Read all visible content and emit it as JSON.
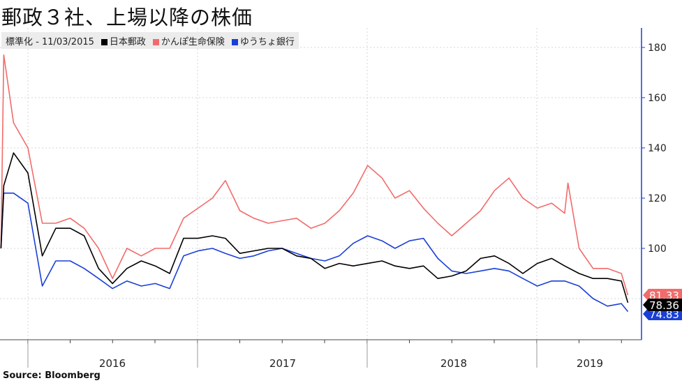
{
  "chart_data": {
    "type": "line",
    "title": "郵政３社、上場以降の株価",
    "legend_prefix": "標準化 - 11/03/2015",
    "legend_position": "top-left",
    "y_axis_side": "right",
    "ylim": [
      67,
      187
    ],
    "yticks": [
      100,
      120,
      140,
      160,
      180
    ],
    "xticks": [
      "2016",
      "2017",
      "2018",
      "2019"
    ],
    "grid": true,
    "source": "Source:  Bloomberg",
    "series": [
      {
        "name": "日本郵政",
        "color": "#000000",
        "last_value": "78.36",
        "points": [
          [
            "2015-11-04",
            100
          ],
          [
            "2015-11-10",
            125
          ],
          [
            "2015-12-01",
            138
          ],
          [
            "2016-01-01",
            130
          ],
          [
            "2016-02-01",
            97
          ],
          [
            "2016-03-01",
            108
          ],
          [
            "2016-04-01",
            108
          ],
          [
            "2016-05-01",
            105
          ],
          [
            "2016-06-01",
            92
          ],
          [
            "2016-07-01",
            86
          ],
          [
            "2016-08-01",
            92
          ],
          [
            "2016-09-01",
            95
          ],
          [
            "2016-10-01",
            93
          ],
          [
            "2016-11-01",
            90
          ],
          [
            "2016-12-01",
            104
          ],
          [
            "2017-01-01",
            104
          ],
          [
            "2017-02-01",
            105
          ],
          [
            "2017-03-01",
            104
          ],
          [
            "2017-04-01",
            98
          ],
          [
            "2017-05-01",
            99
          ],
          [
            "2017-06-01",
            100
          ],
          [
            "2017-07-01",
            100
          ],
          [
            "2017-08-01",
            97
          ],
          [
            "2017-09-01",
            96
          ],
          [
            "2017-10-01",
            92
          ],
          [
            "2017-11-01",
            94
          ],
          [
            "2017-12-01",
            93
          ],
          [
            "2018-01-01",
            94
          ],
          [
            "2018-02-01",
            95
          ],
          [
            "2018-03-01",
            93
          ],
          [
            "2018-04-01",
            92
          ],
          [
            "2018-05-01",
            93
          ],
          [
            "2018-06-01",
            88
          ],
          [
            "2018-07-01",
            89
          ],
          [
            "2018-08-01",
            91
          ],
          [
            "2018-09-01",
            96
          ],
          [
            "2018-10-01",
            97
          ],
          [
            "2018-11-01",
            94
          ],
          [
            "2018-12-01",
            90
          ],
          [
            "2019-01-01",
            94
          ],
          [
            "2019-02-01",
            96
          ],
          [
            "2019-03-01",
            93
          ],
          [
            "2019-04-01",
            90
          ],
          [
            "2019-05-01",
            88
          ],
          [
            "2019-06-01",
            88
          ],
          [
            "2019-07-01",
            87
          ],
          [
            "2019-07-15",
            78.36
          ]
        ]
      },
      {
        "name": "かんぽ生命保険",
        "color": "#f26b6b",
        "last_value": "81.33",
        "points": [
          [
            "2015-11-04",
            100
          ],
          [
            "2015-11-10",
            177
          ],
          [
            "2015-12-01",
            150
          ],
          [
            "2016-01-01",
            140
          ],
          [
            "2016-02-01",
            110
          ],
          [
            "2016-03-01",
            110
          ],
          [
            "2016-04-01",
            112
          ],
          [
            "2016-05-01",
            108
          ],
          [
            "2016-06-01",
            100
          ],
          [
            "2016-07-01",
            88
          ],
          [
            "2016-08-01",
            100
          ],
          [
            "2016-09-01",
            97
          ],
          [
            "2016-10-01",
            100
          ],
          [
            "2016-11-01",
            100
          ],
          [
            "2016-12-01",
            112
          ],
          [
            "2017-01-01",
            116
          ],
          [
            "2017-02-01",
            120
          ],
          [
            "2017-03-01",
            127
          ],
          [
            "2017-04-01",
            115
          ],
          [
            "2017-05-01",
            112
          ],
          [
            "2017-06-01",
            110
          ],
          [
            "2017-07-01",
            111
          ],
          [
            "2017-08-01",
            112
          ],
          [
            "2017-09-01",
            108
          ],
          [
            "2017-10-01",
            110
          ],
          [
            "2017-11-01",
            115
          ],
          [
            "2017-12-01",
            122
          ],
          [
            "2018-01-01",
            133
          ],
          [
            "2018-02-01",
            128
          ],
          [
            "2018-03-01",
            120
          ],
          [
            "2018-04-01",
            123
          ],
          [
            "2018-05-01",
            116
          ],
          [
            "2018-06-01",
            110
          ],
          [
            "2018-07-01",
            105
          ],
          [
            "2018-08-01",
            110
          ],
          [
            "2018-09-01",
            115
          ],
          [
            "2018-10-01",
            123
          ],
          [
            "2018-11-01",
            128
          ],
          [
            "2018-12-01",
            120
          ],
          [
            "2019-01-01",
            116
          ],
          [
            "2019-02-01",
            118
          ],
          [
            "2019-03-01",
            114
          ],
          [
            "2019-03-08",
            126
          ],
          [
            "2019-04-01",
            100
          ],
          [
            "2019-05-01",
            92
          ],
          [
            "2019-06-01",
            92
          ],
          [
            "2019-07-01",
            90
          ],
          [
            "2019-07-15",
            81.33
          ]
        ]
      },
      {
        "name": "ゆうちょ銀行",
        "color": "#1a3fd6",
        "last_value": "74.83",
        "points": [
          [
            "2015-11-04",
            100
          ],
          [
            "2015-11-10",
            122
          ],
          [
            "2015-12-01",
            122
          ],
          [
            "2016-01-01",
            118
          ],
          [
            "2016-02-01",
            85
          ],
          [
            "2016-03-01",
            95
          ],
          [
            "2016-04-01",
            95
          ],
          [
            "2016-05-01",
            92
          ],
          [
            "2016-06-01",
            88
          ],
          [
            "2016-07-01",
            84
          ],
          [
            "2016-08-01",
            87
          ],
          [
            "2016-09-01",
            85
          ],
          [
            "2016-10-01",
            86
          ],
          [
            "2016-11-01",
            84
          ],
          [
            "2016-12-01",
            97
          ],
          [
            "2017-01-01",
            99
          ],
          [
            "2017-02-01",
            100
          ],
          [
            "2017-03-01",
            98
          ],
          [
            "2017-04-01",
            96
          ],
          [
            "2017-05-01",
            97
          ],
          [
            "2017-06-01",
            99
          ],
          [
            "2017-07-01",
            100
          ],
          [
            "2017-08-01",
            98
          ],
          [
            "2017-09-01",
            96
          ],
          [
            "2017-10-01",
            95
          ],
          [
            "2017-11-01",
            97
          ],
          [
            "2017-12-01",
            102
          ],
          [
            "2018-01-01",
            105
          ],
          [
            "2018-02-01",
            103
          ],
          [
            "2018-03-01",
            100
          ],
          [
            "2018-04-01",
            103
          ],
          [
            "2018-05-01",
            104
          ],
          [
            "2018-06-01",
            96
          ],
          [
            "2018-07-01",
            91
          ],
          [
            "2018-08-01",
            90
          ],
          [
            "2018-09-01",
            91
          ],
          [
            "2018-10-01",
            92
          ],
          [
            "2018-11-01",
            91
          ],
          [
            "2018-12-01",
            88
          ],
          [
            "2019-01-01",
            85
          ],
          [
            "2019-02-01",
            87
          ],
          [
            "2019-03-01",
            87
          ],
          [
            "2019-04-01",
            85
          ],
          [
            "2019-05-01",
            80
          ],
          [
            "2019-06-01",
            77
          ],
          [
            "2019-07-01",
            78
          ],
          [
            "2019-07-15",
            74.83
          ]
        ]
      }
    ]
  }
}
